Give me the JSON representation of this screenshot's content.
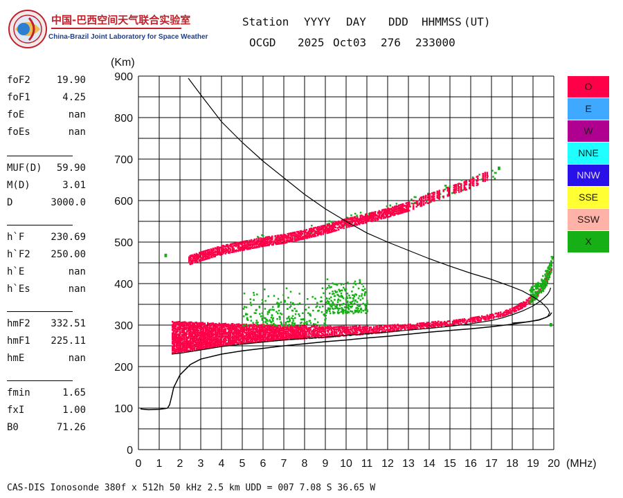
{
  "org": {
    "name_cn": "中国-巴西空间天气联合实验室",
    "name_en": "China-Brazil Joint Laboratory for Space Weather"
  },
  "header": {
    "labels": [
      "Station",
      "YYYY",
      "DAY",
      "DDD",
      "HHMMSS",
      "(UT)"
    ],
    "values": [
      "OCGD",
      "2025",
      "Oct03",
      "276",
      "233000"
    ]
  },
  "params": [
    [
      {
        "name": "foF2",
        "value": "19.90"
      },
      {
        "name": "foF1",
        "value": "4.25"
      },
      {
        "name": "foE",
        "value": "nan"
      },
      {
        "name": "foEs",
        "value": "nan"
      }
    ],
    [
      {
        "name": "MUF(D)",
        "value": "59.90"
      },
      {
        "name": "M(D)",
        "value": "3.01"
      },
      {
        "name": "D",
        "value": "3000.0"
      }
    ],
    [
      {
        "name": "h`F",
        "value": "230.69"
      },
      {
        "name": "h`F2",
        "value": "250.00"
      },
      {
        "name": "h`E",
        "value": "nan"
      },
      {
        "name": "h`Es",
        "value": "nan"
      }
    ],
    [
      {
        "name": "hmF2",
        "value": "332.51"
      },
      {
        "name": "hmF1",
        "value": "225.11"
      },
      {
        "name": "hmE",
        "value": "nan"
      }
    ],
    [
      {
        "name": "fmin",
        "value": "1.65"
      },
      {
        "name": "fxI",
        "value": "1.00"
      },
      {
        "name": "B0",
        "value": "71.26"
      }
    ]
  ],
  "legend": [
    {
      "label": "O",
      "color": "#ff0048",
      "text_color": "#1a1a1a"
    },
    {
      "label": "E",
      "color": "#3fa9ff",
      "text_color": "#1a1a1a"
    },
    {
      "label": "W",
      "color": "#b0008f",
      "text_color": "#1a1a1a"
    },
    {
      "label": "NNE",
      "color": "#20ffff",
      "text_color": "#1a1a1a"
    },
    {
      "label": "NNW",
      "color": "#2a10e8",
      "text_color": "#dddddd"
    },
    {
      "label": "SSE",
      "color": "#ffff33",
      "text_color": "#1a1a1a"
    },
    {
      "label": "SSW",
      "color": "#ffb3a8",
      "text_color": "#1a1a1a"
    },
    {
      "label": "X",
      "color": "#16b016",
      "text_color": "#1a1a1a"
    }
  ],
  "footer": "CAS-DIS Ionosonde 380f x 512h 50 kHz 2.5 km UDD = 007 7.08 S 36.65 W",
  "chart_data": {
    "type": "scatter",
    "xlabel": "(MHz)",
    "ylabel": "(Km)",
    "xlim": [
      0,
      20
    ],
    "ylim": [
      0,
      900
    ],
    "x_ticks": [
      0,
      1,
      2,
      3,
      4,
      5,
      6,
      7,
      8,
      9,
      10,
      11,
      12,
      13,
      14,
      15,
      16,
      17,
      18,
      19,
      20
    ],
    "y_ticks": [
      0,
      100,
      200,
      300,
      400,
      500,
      600,
      700,
      800,
      900
    ],
    "grid": true,
    "series": [
      {
        "name": "O",
        "color": "#ff0048",
        "trace_1hop": {
          "x": [
            1.6,
            2.0,
            3.0,
            4.0,
            5.0,
            6.0,
            7.0,
            8.0,
            9.0,
            10.0,
            11.0,
            12.0,
            13.0,
            14.0,
            15.0,
            16.0,
            17.0,
            17.5,
            18.0,
            18.5,
            19.0,
            19.4,
            19.7,
            19.9
          ],
          "y_low": [
            235,
            238,
            245,
            252,
            258,
            263,
            267,
            270,
            273,
            277,
            281,
            286,
            291,
            296,
            302,
            309,
            318,
            324,
            333,
            345,
            362,
            384,
            410,
            440
          ],
          "y_high": [
            310,
            310,
            308,
            306,
            304,
            303,
            302,
            300,
            299,
            299,
            300,
            302,
            305,
            309,
            314,
            321,
            330,
            336,
            345,
            358,
            376,
            400,
            430,
            465
          ]
        },
        "trace_2hop": {
          "x": [
            2.4,
            3.0,
            4.0,
            5.0,
            6.0,
            7.0,
            8.0,
            9.0,
            10.0,
            11.0,
            12.0,
            13.0,
            14.0,
            15.0,
            16.0,
            16.8
          ],
          "y": [
            460,
            470,
            485,
            495,
            505,
            512,
            523,
            535,
            550,
            562,
            575,
            590,
            610,
            628,
            645,
            665
          ]
        }
      },
      {
        "name": "X",
        "color": "#16b016",
        "clusters": [
          {
            "x": [
              5.0,
              9.0
            ],
            "y": [
              300,
              400
            ]
          },
          {
            "x": [
              9.0,
              11.0
            ],
            "y": [
              330,
              420
            ]
          },
          {
            "x": [
              18.8,
              19.9
            ],
            "y": [
              330,
              440
            ]
          },
          {
            "x": [
              5.0,
              17.2
            ],
            "y": [
              470,
              680
            ]
          }
        ],
        "isolated": [
          {
            "x": 1.25,
            "y": 472
          },
          {
            "x": 17.3,
            "y": 682
          },
          {
            "x": 19.8,
            "y": 305
          }
        ]
      }
    ],
    "profile_curve": {
      "description": "reconstructed true-height profile",
      "x": [
        0.1,
        0.5,
        1.0,
        1.3,
        1.4,
        1.5,
        1.55,
        1.6,
        1.7,
        2.0,
        2.5,
        3.0,
        4.0,
        5.0,
        6.0,
        7.0,
        8.0,
        9.0,
        10.0,
        11.0,
        12.0,
        13.0,
        14.0,
        15.0,
        16.0,
        17.0,
        18.0,
        18.5,
        19.0,
        19.3,
        19.6,
        19.8,
        19.9
      ],
      "y": [
        98,
        96,
        97,
        99,
        100,
        108,
        118,
        128,
        150,
        180,
        205,
        218,
        230,
        238,
        244,
        250,
        255,
        260,
        264,
        269,
        273,
        278,
        283,
        287,
        291,
        296,
        302,
        306,
        310,
        313,
        318,
        323,
        330
      ]
    },
    "virtual_curve": {
      "x": [
        1.6,
        2.0,
        3.0,
        4.0,
        5.0,
        6.0,
        7.0,
        8.0,
        9.0,
        10.0,
        11.0,
        12.0,
        13.0,
        14.0,
        15.0,
        16.0,
        17.0,
        17.5,
        18.0,
        18.5,
        19.0,
        19.3,
        19.5,
        19.7,
        19.8,
        19.85
      ],
      "y": [
        230,
        232,
        240,
        248,
        254,
        259,
        264,
        268,
        271,
        275,
        279,
        283,
        288,
        292,
        297,
        303,
        311,
        317,
        325,
        334,
        346,
        356,
        364,
        374,
        382,
        390
      ]
    },
    "model_curve": {
      "x": [
        2.4,
        3.0,
        4.0,
        5.0,
        6.0,
        7.0,
        8.0,
        9.0,
        10.0,
        11.0,
        12.0,
        13.0,
        14.0,
        15.0,
        16.0,
        17.0,
        18.0,
        18.5,
        19.0,
        19.4,
        19.7,
        19.8,
        19.7,
        19.3,
        18.8,
        18.3,
        18.0
      ],
      "y": [
        895,
        855,
        790,
        740,
        695,
        655,
        615,
        580,
        550,
        522,
        500,
        480,
        460,
        442,
        425,
        410,
        392,
        382,
        368,
        355,
        340,
        330,
        320,
        312,
        308,
        306,
        305
      ]
    }
  }
}
